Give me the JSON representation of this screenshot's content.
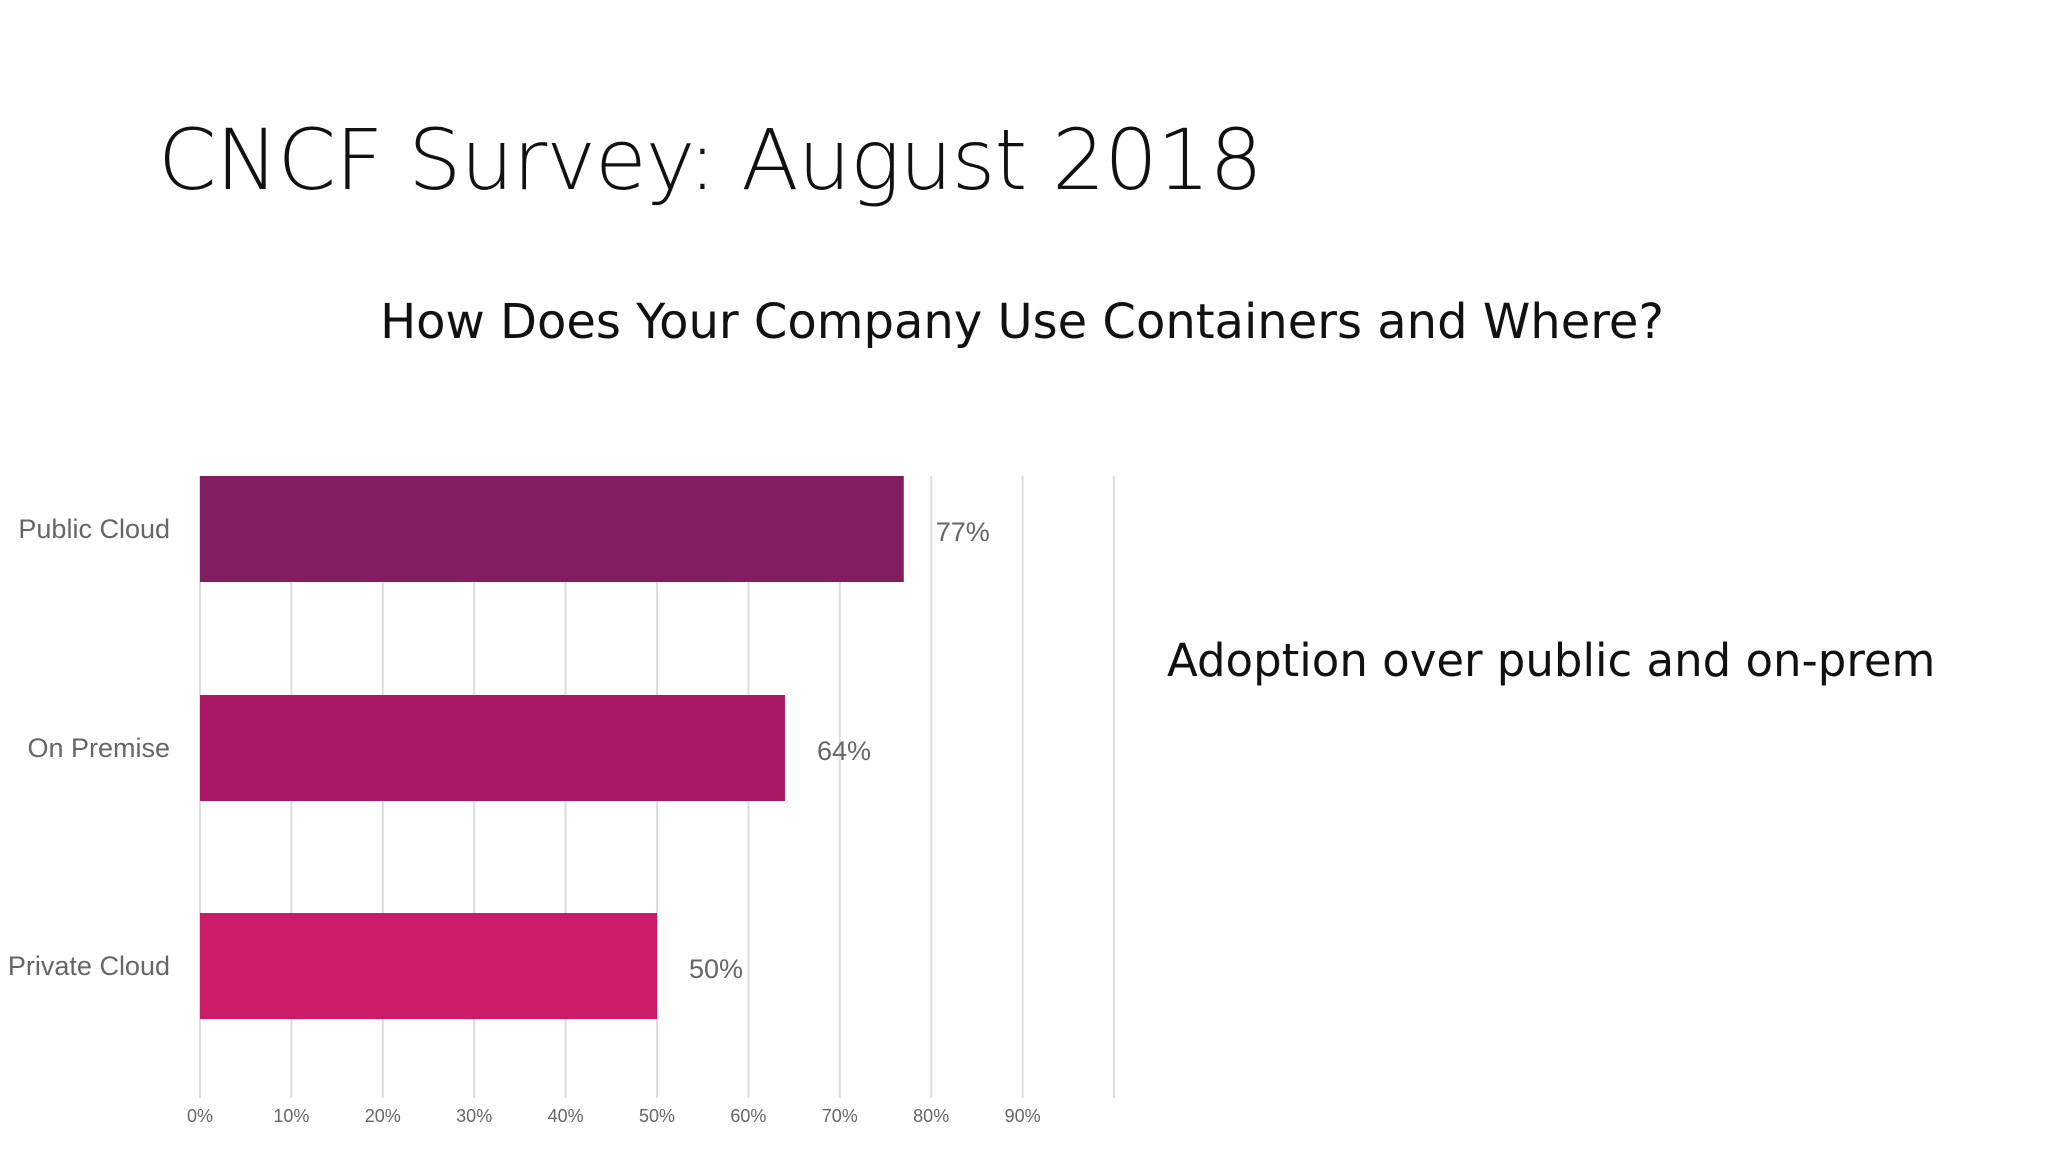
{
  "slide": {
    "title": "CNCF Survey: August 2018",
    "note": "Adoption over public and on-prem"
  },
  "chart_data": {
    "type": "bar",
    "orientation": "horizontal",
    "title": "How Does Your Company Use Containers and Where?",
    "categories": [
      "Public Cloud",
      "On Premise",
      "Private Cloud"
    ],
    "values": [
      77,
      64,
      50
    ],
    "value_labels": [
      "77%",
      "64%",
      "50%"
    ],
    "colors": [
      "#821e5f",
      "#aa1a62",
      "#cb1b69"
    ],
    "xlim": [
      0,
      100
    ],
    "x_ticks": [
      "0%",
      "10%",
      "20%",
      "30%",
      "40%",
      "50%",
      "60%",
      "70%",
      "80%",
      "90%"
    ],
    "grid": true,
    "gridline_color": "#dddddd"
  }
}
